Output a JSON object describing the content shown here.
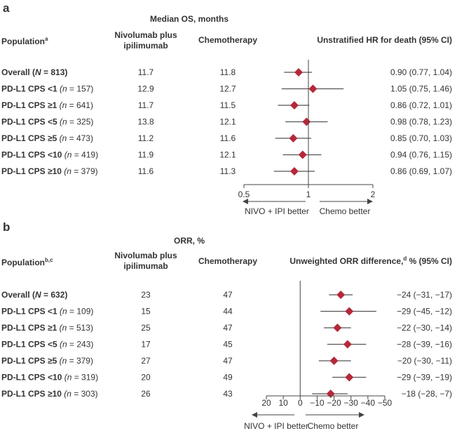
{
  "panels": [
    {
      "letter": "a",
      "group_header": "Median OS, months",
      "col_population": "Population",
      "col_population_sup": "a",
      "col_nivo_line1": "Nivolumab plus",
      "col_nivo_line2": "ipilimumab",
      "col_chemo": "Chemotherapy",
      "col_effect": "Unstratified HR for death (95% CI)",
      "better_left": "NIVO + IPI better",
      "better_right": "Chemo better"
    },
    {
      "letter": "b",
      "group_header": "ORR, %",
      "col_population": "Population",
      "col_population_sup": "b,c",
      "col_nivo_line1": "Nivolumab plus",
      "col_nivo_line2": "ipilimumab",
      "col_chemo": "Chemotherapy",
      "col_effect_pre": "Unweighted ORR difference,",
      "col_effect_sup": "d",
      "col_effect_post": " % (95% CI)",
      "better_left": "NIVO + IPI better",
      "better_right": "Chemo better"
    }
  ],
  "chart_data": [
    {
      "type": "forest",
      "title": "Median OS, months",
      "effect_label": "Unstratified HR for death (95% CI)",
      "xscale": "log",
      "xlim": [
        0.5,
        2
      ],
      "reference": 1,
      "xticks": [
        0.5,
        1,
        2
      ],
      "xtick_labels": [
        "0.5",
        "1",
        "2"
      ],
      "marker_color": "#b5283a",
      "rows": [
        {
          "label": "Overall",
          "n_text": "N",
          "n": "813",
          "bold_all": true,
          "nivo": "11.7",
          "chemo": "11.8",
          "est": 0.9,
          "lo": 0.77,
          "hi": 1.04,
          "ci_text": "0.90 (0.77, 1.04)"
        },
        {
          "label": "PD-L1 CPS <1",
          "n_text": "n",
          "n": "157",
          "bold_all": false,
          "nivo": "12.9",
          "chemo": "12.7",
          "est": 1.05,
          "lo": 0.75,
          "hi": 1.46,
          "ci_text": "1.05 (0.75, 1.46)"
        },
        {
          "label": "PD-L1 CPS ≥1",
          "n_text": "n",
          "n": "641",
          "bold_all": false,
          "nivo": "11.7",
          "chemo": "11.5",
          "est": 0.86,
          "lo": 0.72,
          "hi": 1.01,
          "ci_text": "0.86 (0.72, 1.01)"
        },
        {
          "label": "PD-L1 CPS <5",
          "n_text": "n",
          "n": "325",
          "bold_all": false,
          "nivo": "13.8",
          "chemo": "12.1",
          "est": 0.98,
          "lo": 0.78,
          "hi": 1.23,
          "ci_text": "0.98 (0.78, 1.23)"
        },
        {
          "label": "PD-L1 CPS ≥5",
          "n_text": "n",
          "n": "473",
          "bold_all": false,
          "nivo": "11.2",
          "chemo": "11.6",
          "est": 0.85,
          "lo": 0.7,
          "hi": 1.03,
          "ci_text": "0.85 (0.70, 1.03)"
        },
        {
          "label": "PD-L1 CPS <10",
          "n_text": "n",
          "n": "419",
          "bold_all": false,
          "nivo": "11.9",
          "chemo": "12.1",
          "est": 0.94,
          "lo": 0.76,
          "hi": 1.15,
          "ci_text": "0.94 (0.76, 1.15)"
        },
        {
          "label": "PD-L1 CPS ≥10",
          "n_text": "n",
          "n": "379",
          "bold_all": false,
          "nivo": "11.6",
          "chemo": "11.3",
          "est": 0.86,
          "lo": 0.69,
          "hi": 1.07,
          "ci_text": "0.86 (0.69, 1.07)"
        }
      ]
    },
    {
      "type": "forest",
      "title": "ORR, %",
      "effect_label": "Unweighted ORR difference, % (95% CI)",
      "xscale": "linear-reversed",
      "xlim": [
        20,
        -50
      ],
      "reference": 0,
      "xticks": [
        20,
        10,
        0,
        -10,
        -20,
        -30,
        -40,
        -50
      ],
      "xtick_labels": [
        "20",
        "10",
        "0",
        "−10",
        "−20",
        "−30",
        "−40",
        "−50"
      ],
      "marker_color": "#b5283a",
      "rows": [
        {
          "label": "Overall",
          "n_text": "N",
          "n": "632",
          "bold_all": true,
          "nivo": "23",
          "chemo": "47",
          "est": -24,
          "lo": -31,
          "hi": -17,
          "ci_text": "−24 (−31, −17)"
        },
        {
          "label": "PD-L1 CPS <1",
          "n_text": "n",
          "n": "109",
          "bold_all": false,
          "nivo": "15",
          "chemo": "44",
          "est": -29,
          "lo": -45,
          "hi": -12,
          "ci_text": "−29 (−45, −12)"
        },
        {
          "label": "PD-L1 CPS ≥1",
          "n_text": "n",
          "n": "513",
          "bold_all": false,
          "nivo": "25",
          "chemo": "47",
          "est": -22,
          "lo": -30,
          "hi": -14,
          "ci_text": "−22 (−30, −14)"
        },
        {
          "label": "PD-L1 CPS <5",
          "n_text": "n",
          "n": "243",
          "bold_all": false,
          "nivo": "17",
          "chemo": "45",
          "est": -28,
          "lo": -39,
          "hi": -16,
          "ci_text": "−28 (−39, −16)"
        },
        {
          "label": "PD-L1 CPS ≥5",
          "n_text": "n",
          "n": "379",
          "bold_all": false,
          "nivo": "27",
          "chemo": "47",
          "est": -20,
          "lo": -30,
          "hi": -11,
          "ci_text": "−20 (−30, −11)"
        },
        {
          "label": "PD-L1 CPS <10",
          "n_text": "n",
          "n": "319",
          "bold_all": false,
          "nivo": "20",
          "chemo": "49",
          "est": -29,
          "lo": -39,
          "hi": -19,
          "ci_text": "−29 (−39, −19)"
        },
        {
          "label": "PD-L1 CPS ≥10",
          "n_text": "n",
          "n": "303",
          "bold_all": false,
          "nivo": "26",
          "chemo": "43",
          "est": -18,
          "lo": -28,
          "hi": -7,
          "ci_text": "−18 (−28, −7)"
        }
      ]
    }
  ]
}
